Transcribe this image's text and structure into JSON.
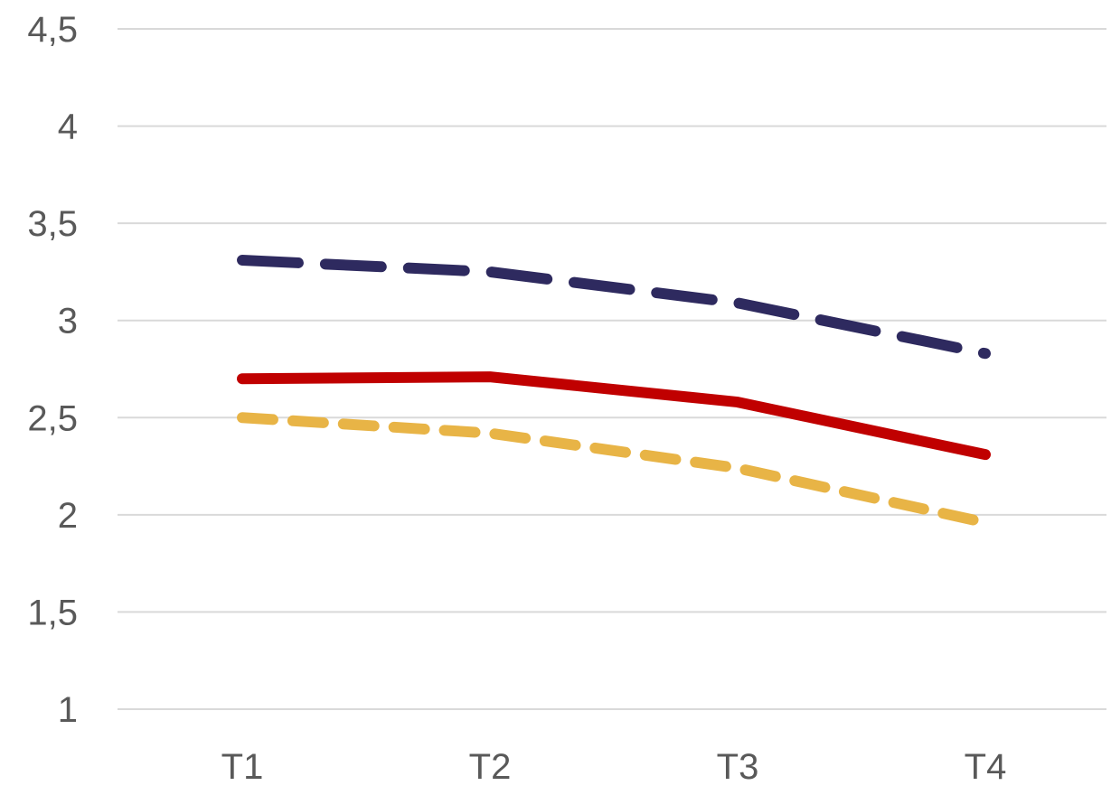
{
  "chart_data": {
    "type": "line",
    "categories": [
      "T1",
      "T2",
      "T3",
      "T4"
    ],
    "y_ticks": [
      "4,5",
      "4",
      "3,5",
      "3",
      "2,5",
      "2",
      "1,5",
      "1"
    ],
    "y_tick_values": [
      4.5,
      4,
      3.5,
      3,
      2.5,
      2,
      1.5,
      1
    ],
    "ylim": [
      1,
      4.5
    ],
    "grid": true,
    "legend": "none",
    "series": [
      {
        "values": [
          3.31,
          3.25,
          3.09,
          2.83
        ],
        "color": "#2e2a5f",
        "style": "long-dash"
      },
      {
        "values": [
          2.7,
          2.71,
          2.58,
          2.31
        ],
        "color": "#c00000",
        "style": "solid"
      },
      {
        "values": [
          2.5,
          2.42,
          2.24,
          1.96
        ],
        "color": "#e8b446",
        "style": "short-dash"
      }
    ]
  }
}
